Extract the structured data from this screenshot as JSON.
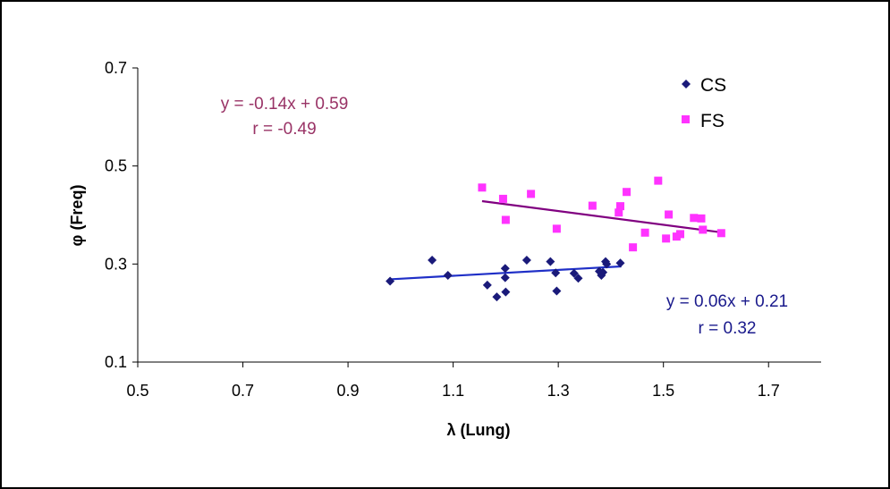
{
  "chart_data": {
    "type": "scatter",
    "xlabel": "λ (Lung)",
    "ylabel": "φ (Freq)",
    "xlim": [
      0.5,
      1.8
    ],
    "ylim": [
      0.1,
      0.7
    ],
    "x_ticks": [
      "0.5",
      "0.7",
      "0.9",
      "1.1",
      "1.3",
      "1.5",
      "1.7"
    ],
    "y_ticks": [
      "0.1",
      "0.3",
      "0.5",
      "0.7"
    ],
    "legend_position": "top-right",
    "series": [
      {
        "name": "CS",
        "marker": "diamond",
        "color": "#1a1a7a",
        "points": [
          [
            0.98,
            0.265
          ],
          [
            1.06,
            0.308
          ],
          [
            1.09,
            0.277
          ],
          [
            1.165,
            0.257
          ],
          [
            1.183,
            0.233
          ],
          [
            1.199,
            0.291
          ],
          [
            1.199,
            0.272
          ],
          [
            1.2,
            0.243
          ],
          [
            1.24,
            0.308
          ],
          [
            1.285,
            0.305
          ],
          [
            1.295,
            0.282
          ],
          [
            1.297,
            0.245
          ],
          [
            1.33,
            0.281
          ],
          [
            1.338,
            0.271
          ],
          [
            1.378,
            0.285
          ],
          [
            1.382,
            0.277
          ],
          [
            1.385,
            0.283
          ],
          [
            1.39,
            0.305
          ],
          [
            1.392,
            0.3
          ],
          [
            1.418,
            0.302
          ]
        ],
        "trendline": {
          "equation": "y = 0.06x + 0.21",
          "r": "r = 0.32",
          "slope": 0.06,
          "intercept": 0.21,
          "x_range": [
            0.98,
            1.42
          ],
          "color": "#1f2fc7"
        }
      },
      {
        "name": "FS",
        "marker": "square",
        "color": "#ff33ff",
        "points": [
          [
            1.155,
            0.456
          ],
          [
            1.195,
            0.433
          ],
          [
            1.2,
            0.39
          ],
          [
            1.248,
            0.443
          ],
          [
            1.297,
            0.372
          ],
          [
            1.365,
            0.419
          ],
          [
            1.415,
            0.405
          ],
          [
            1.418,
            0.418
          ],
          [
            1.43,
            0.447
          ],
          [
            1.442,
            0.334
          ],
          [
            1.465,
            0.364
          ],
          [
            1.49,
            0.47
          ],
          [
            1.505,
            0.352
          ],
          [
            1.51,
            0.401
          ],
          [
            1.525,
            0.356
          ],
          [
            1.532,
            0.361
          ],
          [
            1.558,
            0.394
          ],
          [
            1.572,
            0.393
          ],
          [
            1.575,
            0.37
          ],
          [
            1.61,
            0.363
          ]
        ],
        "trendline": {
          "equation": "y = -0.14x + 0.59",
          "r": "r = -0.49",
          "slope": -0.14,
          "intercept": 0.59,
          "x_range": [
            1.155,
            1.612
          ],
          "color": "#800080"
        }
      }
    ],
    "annotations": [
      {
        "series": "FS",
        "equation": "y = -0.14x + 0.59",
        "r": "r = -0.49",
        "color": "#993366"
      },
      {
        "series": "CS",
        "equation": "y = 0.06x + 0.21",
        "r": "r = 0.32",
        "color": "#1a1a8c"
      }
    ]
  }
}
